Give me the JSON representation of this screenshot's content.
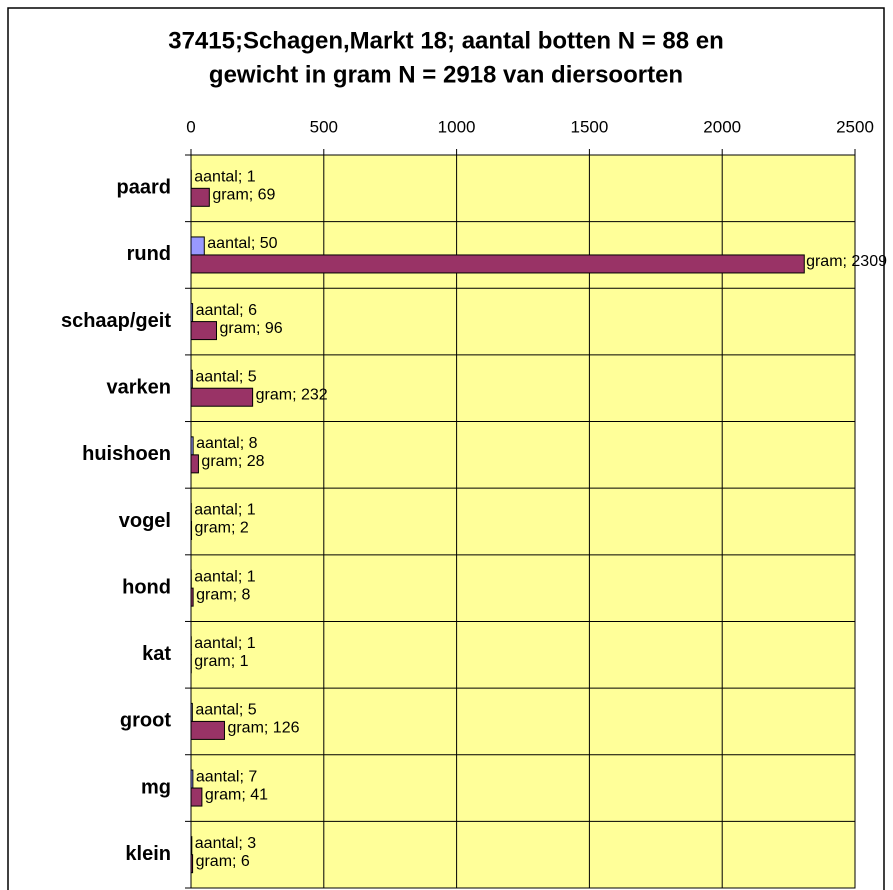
{
  "chart_data": {
    "type": "bar",
    "orientation": "horizontal",
    "title": [
      "37415;Schagen,Markt 18; aantal botten N = 88 en",
      "gewicht in gram N = 2918 van diersoorten"
    ],
    "categories": [
      "paard",
      "rund",
      "schaap/geit",
      "varken",
      "huishoen",
      "vogel",
      "hond",
      "kat",
      "groot",
      "mg",
      "klein"
    ],
    "series": [
      {
        "name": "aantal",
        "color": "#9999ff",
        "values": [
          1,
          50,
          6,
          5,
          8,
          1,
          1,
          1,
          5,
          7,
          3
        ],
        "value_labels": [
          "aantal; 1",
          "aantal; 50",
          "aantal; 6",
          "aantal; 5",
          "aantal; 8",
          "aantal; 1",
          "aantal; 1",
          "aantal; 1",
          "aantal; 5",
          "aantal; 7",
          "aantal; 3"
        ]
      },
      {
        "name": "gram",
        "color": "#993366",
        "values": [
          69,
          2309,
          96,
          232,
          28,
          2,
          8,
          1,
          126,
          41,
          6
        ],
        "value_labels": [
          "gram; 69",
          "gram; 2309",
          "gram; 96",
          "gram; 232",
          "gram; 28",
          "gram; 2",
          "gram; 8",
          "gram; 1",
          "gram; 126",
          "gram; 41",
          "gram; 6"
        ]
      }
    ],
    "xlim": [
      0,
      2500
    ],
    "xticks": [
      0,
      500,
      1000,
      1500,
      2000,
      2500
    ],
    "grid": true,
    "plot_background": "#ffff99"
  }
}
